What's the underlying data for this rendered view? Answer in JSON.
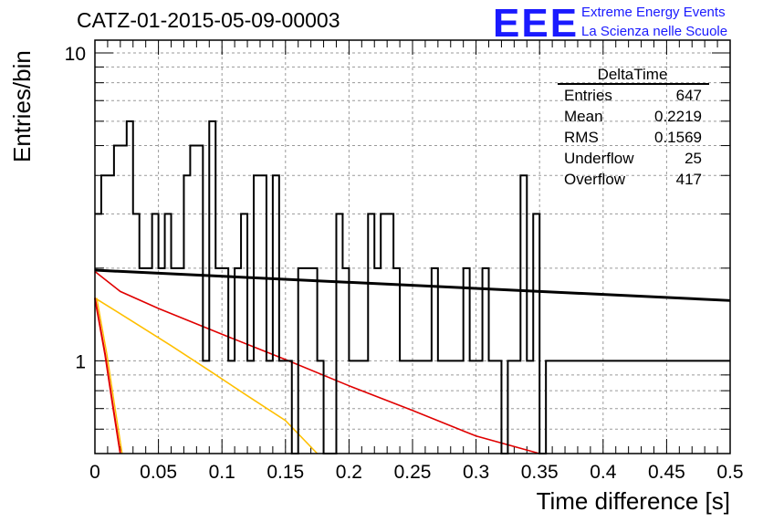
{
  "header": {
    "run_title": "CATZ-01-2015-05-09-00003",
    "logo_text": "EEE",
    "logo_line1": "Extreme Energy Events",
    "logo_line2": "La Scienza nelle Scuole"
  },
  "stats_box": {
    "title": "DeltaTime",
    "rows": [
      {
        "label": "Entries",
        "value": "647"
      },
      {
        "label": "Mean",
        "value": "0.2219"
      },
      {
        "label": "RMS",
        "value": "0.1569"
      },
      {
        "label": "Underflow",
        "value": "25"
      },
      {
        "label": "Overflow",
        "value": "417"
      }
    ]
  },
  "colors": {
    "histogram": "#000000",
    "fit_black": "#000000",
    "fit_red": "#e00000",
    "fit_orange": "#ffbf00",
    "logo": "#1a1aff"
  },
  "chart_data": {
    "type": "line",
    "title": "CATZ-01-2015-05-09-00003",
    "xlabel": "Time difference [s]",
    "ylabel": "Entries/bin",
    "xlim": [
      0,
      0.5
    ],
    "ylim": [
      0.5,
      11
    ],
    "yscale": "log",
    "grid": true,
    "x_ticks": [
      "0",
      "0.05",
      "0.1",
      "0.15",
      "0.2",
      "0.25",
      "0.3",
      "0.35",
      "0.4",
      "0.45",
      "0.5"
    ],
    "y_ticks": [
      "1",
      "10"
    ],
    "histogram": {
      "name": "DeltaTime",
      "bin_width": 0.005,
      "x_start": 0,
      "counts": [
        3,
        4,
        4,
        5,
        5,
        6,
        3,
        2,
        2,
        3,
        2,
        3,
        2,
        2,
        4,
        5,
        5,
        1,
        6,
        2,
        2,
        1,
        2,
        3,
        1,
        4,
        4,
        1,
        4,
        1,
        1,
        0,
        2,
        2,
        2,
        1,
        0,
        0,
        3,
        2,
        1,
        1,
        1,
        3,
        2,
        3,
        3,
        2,
        1,
        1,
        1,
        1,
        1,
        2,
        1,
        1,
        1,
        1,
        2,
        1,
        1,
        2,
        1,
        1,
        0,
        1,
        1,
        4,
        1,
        3,
        0,
        1,
        1,
        1,
        1,
        1,
        1,
        1,
        1,
        1,
        1,
        1,
        1,
        1,
        1,
        1,
        1,
        1,
        1,
        1,
        1,
        1,
        1,
        1,
        1,
        1,
        1,
        1,
        1,
        1
      ]
    },
    "series": [
      {
        "values_x": [
          0,
          0.5
        ],
        "values_y": [
          1.97,
          1.57
        ]
      },
      {
        "values_x": [
          0,
          0.02,
          0.05,
          0.1,
          0.15,
          0.2,
          0.25,
          0.3,
          0.35
        ],
        "values_y": [
          1.95,
          1.68,
          1.48,
          1.22,
          1.01,
          0.83,
          0.69,
          0.57,
          0.49
        ]
      },
      {
        "values_x": [
          0,
          0.03,
          0.06,
          0.09,
          0.12,
          0.15,
          0.175
        ],
        "values_y": [
          1.6,
          1.34,
          1.12,
          0.93,
          0.77,
          0.64,
          0.5
        ]
      },
      {
        "values_x": [
          0,
          0.008,
          0.014,
          0.02
        ],
        "values_y": [
          1.6,
          1.05,
          0.72,
          0.5
        ]
      }
    ]
  }
}
